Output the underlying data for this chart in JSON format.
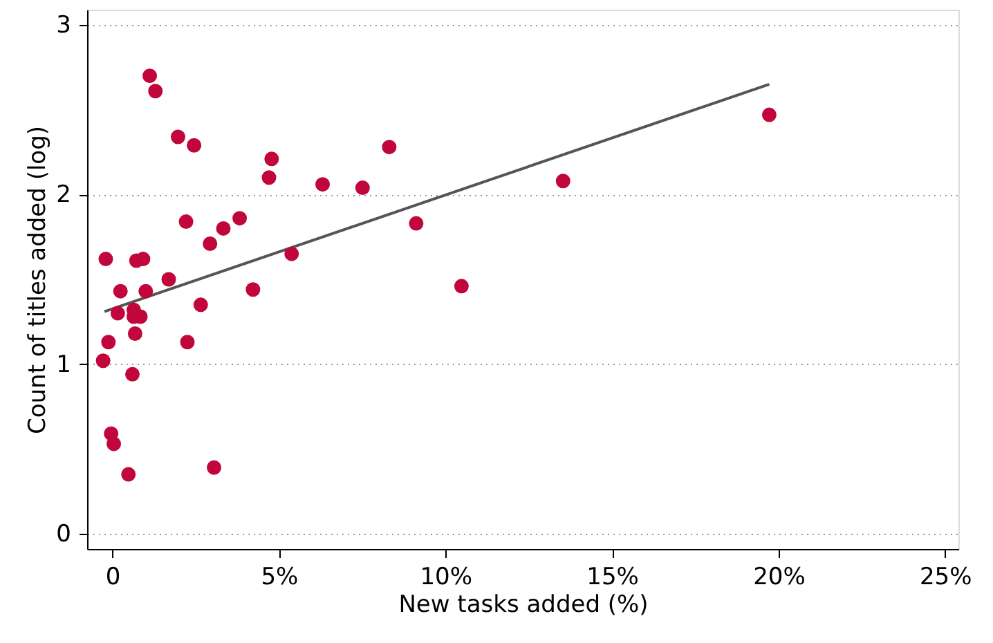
{
  "chart_data": {
    "type": "scatter",
    "xlabel": "New tasks added (%)",
    "ylabel": "Count of titles added (log)",
    "xlim": [
      -0.76,
      25.4
    ],
    "ylim": [
      -0.09,
      3.09
    ],
    "xticks": [
      0,
      {
        "value": 5,
        "label": "5%"
      },
      {
        "value": 10,
        "label": "10%"
      },
      {
        "value": 15,
        "label": "15%"
      },
      {
        "value": 20,
        "label": "20%"
      },
      {
        "value": 25,
        "label": "25%"
      }
    ],
    "yticks": [
      0,
      1,
      2,
      3
    ],
    "grid": "y",
    "series": [
      {
        "type": "scatter",
        "color": "#c1063b",
        "marker": "circle",
        "x": [
          1.12,
          1.29,
          1.97,
          2.45,
          4.78,
          4.7,
          8.31,
          6.31,
          7.51,
          13.53,
          19.72,
          2.21,
          3.82,
          3.33,
          2.93,
          5.38,
          9.12,
          -0.2,
          0.72,
          0.92,
          1.69,
          0.24,
          1.0,
          4.22,
          10.48,
          0.64,
          0.84,
          0.64,
          0.16,
          0.68,
          2.65,
          2.25,
          -0.12,
          -0.28,
          0.6,
          -0.04,
          0.04,
          0.48,
          3.05
        ],
        "values": [
          2.7,
          2.61,
          2.34,
          2.29,
          2.21,
          2.1,
          2.28,
          2.06,
          2.04,
          2.08,
          2.47,
          1.84,
          1.86,
          1.8,
          1.71,
          1.65,
          1.83,
          1.62,
          1.61,
          1.62,
          1.5,
          1.43,
          1.43,
          1.44,
          1.46,
          1.32,
          1.28,
          1.28,
          1.3,
          1.18,
          1.35,
          1.13,
          1.13,
          1.02,
          0.94,
          0.59,
          0.53,
          0.35,
          0.39
        ]
      },
      {
        "type": "line",
        "color": "#555555",
        "marker": "none",
        "line_style": "solid",
        "x": [
          -0.24,
          19.72
        ],
        "values": [
          1.31,
          2.65
        ]
      }
    ]
  }
}
